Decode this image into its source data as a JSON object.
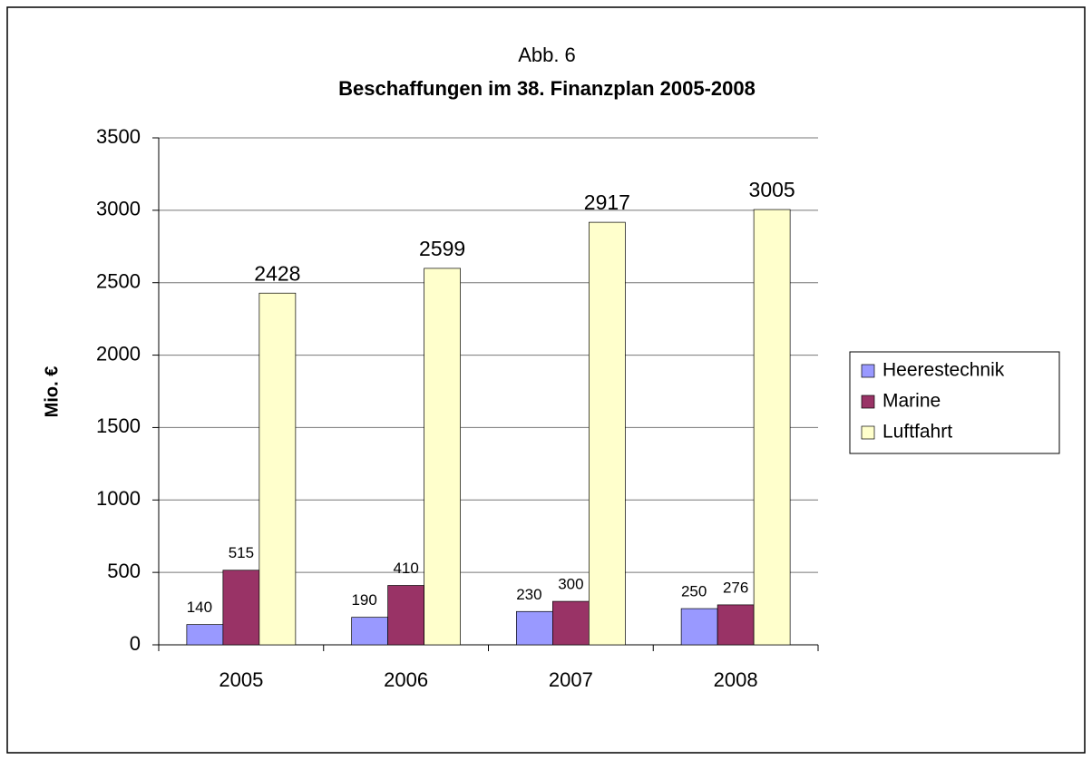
{
  "chart_data": {
    "type": "bar",
    "title": "Abb. 6",
    "subtitle": "Beschaffungen im 38. Finanzplan 2005-2008",
    "y_label": "Mio. €",
    "categories": [
      "2005",
      "2006",
      "2007",
      "2008"
    ],
    "series": [
      {
        "name": "Heerestechnik",
        "color": "#9999ff",
        "values": [
          140,
          190,
          230,
          250
        ]
      },
      {
        "name": "Marine",
        "color": "#993366",
        "values": [
          515,
          410,
          300,
          276
        ]
      },
      {
        "name": "Luftfahrt",
        "color": "#ffffcc",
        "values": [
          2428,
          2599,
          2917,
          3005
        ]
      }
    ],
    "ylim": [
      0,
      3500
    ],
    "yticks": [
      0,
      500,
      1000,
      1500,
      2000,
      2500,
      3000,
      3500
    ],
    "grid": true,
    "legend": "right"
  }
}
